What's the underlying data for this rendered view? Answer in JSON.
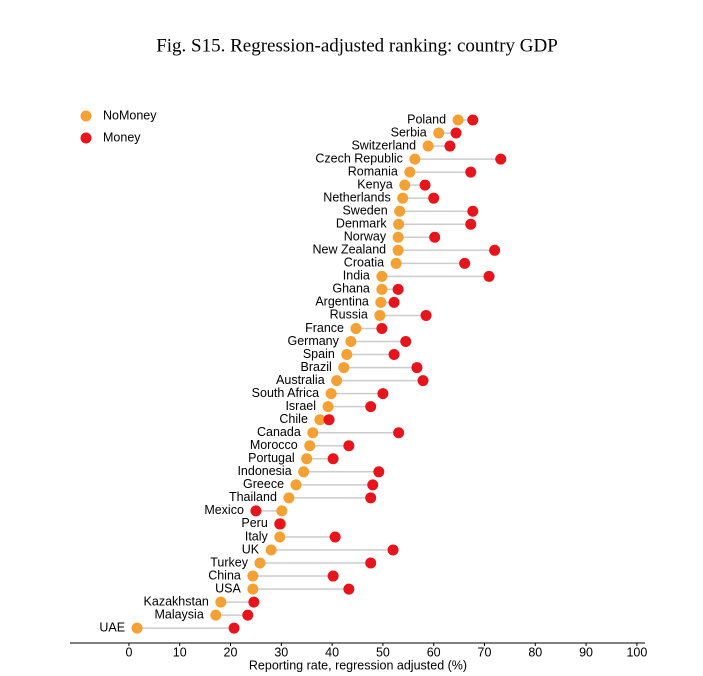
{
  "chart_data": {
    "type": "dot",
    "title": "Fig. S15. Regression-adjusted ranking: country GDP",
    "x_label": "Reporting rate, regression adjusted (%)",
    "categories": [
      "Poland",
      "Serbia",
      "Switzerland",
      "Czech Republic",
      "Romania",
      "Kenya",
      "Netherlands",
      "Sweden",
      "Denmark",
      "Norway",
      "New Zealand",
      "Croatia",
      "India",
      "Ghana",
      "Argentina",
      "Russia",
      "France",
      "Germany",
      "Spain",
      "Brazil",
      "Australia",
      "South Africa",
      "Israel",
      "Chile",
      "Canada",
      "Morocco",
      "Portugal",
      "Indonesia",
      "Greece",
      "Thailand",
      "Mexico",
      "Peru",
      "Italy",
      "UK",
      "Turkey",
      "China",
      "USA",
      "Kazakhstan",
      "Malaysia",
      "UAE"
    ],
    "series": [
      {
        "name": "NoMoney",
        "color": "#f5a033",
        "values": [
          64.8,
          61.0,
          58.9,
          56.3,
          55.3,
          54.3,
          53.9,
          53.3,
          53.1,
          53.0,
          53.0,
          52.6,
          49.8,
          49.8,
          49.6,
          49.4,
          44.7,
          43.7,
          42.9,
          42.3,
          40.9,
          39.8,
          39.2,
          37.6,
          36.2,
          35.6,
          35.0,
          34.4,
          32.9,
          31.5,
          30.1,
          29.9,
          29.7,
          28.0,
          25.8,
          24.4,
          24.4,
          18.1,
          17.1,
          1.6
        ]
      },
      {
        "name": "Money",
        "color": "#e8141c",
        "values": [
          67.7,
          64.4,
          63.2,
          73.2,
          67.3,
          58.3,
          60.0,
          67.7,
          67.3,
          60.2,
          72.0,
          66.1,
          70.9,
          53.0,
          52.2,
          58.5,
          49.8,
          54.5,
          52.2,
          56.7,
          57.9,
          50.0,
          47.6,
          39.4,
          53.1,
          43.3,
          40.2,
          49.2,
          48.0,
          47.6,
          25.0,
          29.7,
          40.6,
          52.0,
          47.6,
          40.2,
          43.3,
          24.6,
          23.4,
          20.7
        ]
      }
    ],
    "xlim": [
      -11.6,
      101.6
    ],
    "xticks": [
      0,
      10,
      20,
      30,
      40,
      50,
      60,
      70,
      80,
      90,
      100
    ],
    "legend": "top-left",
    "connector_color": "#cccccc"
  }
}
